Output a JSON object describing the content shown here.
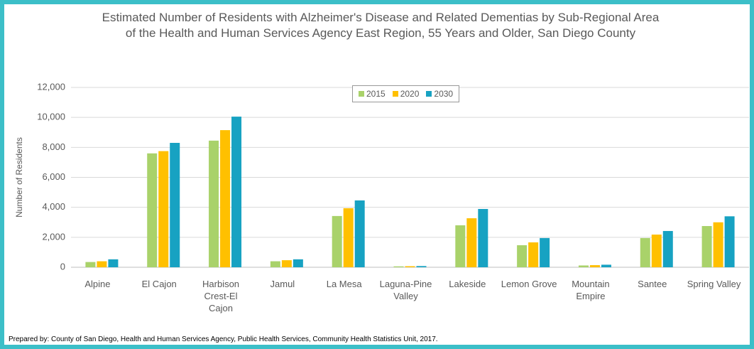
{
  "chart_data": {
    "type": "bar",
    "title": "Estimated Number of Residents with Alzheimer's Disease and Related Dementias by Sub-Regional Area of the Health and Human Services Agency East Region, 55 Years and Older, San Diego County",
    "y_label": "Number of Residents",
    "note": "Prepared by: County of San Diego, Health and Human Services Agency, Public Health Services, Community Health Statistics Unit, 2017.",
    "categories": [
      "Alpine",
      "El Cajon",
      "Harbison Crest-El Cajon",
      "Jamul",
      "La Mesa",
      "Laguna-Pine Valley",
      "Lakeside",
      "Lemon Grove",
      "Mountain Empire",
      "Santee",
      "Spring Valley"
    ],
    "series": [
      {
        "name": "2015",
        "color": "#a9d26a",
        "values": [
          350,
          7600,
          8450,
          400,
          3420,
          60,
          2800,
          1470,
          120,
          1950,
          2750
        ]
      },
      {
        "name": "2020",
        "color": "#ffc000",
        "values": [
          400,
          7750,
          9150,
          470,
          3940,
          70,
          3270,
          1660,
          140,
          2180,
          3000
        ]
      },
      {
        "name": "2030",
        "color": "#17a2c2",
        "values": [
          530,
          8300,
          10050,
          530,
          4460,
          80,
          3890,
          1950,
          170,
          2420,
          3400
        ]
      }
    ],
    "ylim": [
      0,
      12000
    ],
    "yticks": [
      0,
      {
        "value": 2000,
        "label": "2,000"
      },
      {
        "value": 4000,
        "label": "4,000"
      },
      {
        "value": 6000,
        "label": "6,000"
      },
      {
        "value": 8000,
        "label": "8,000"
      },
      {
        "value": 10000,
        "label": "10,000"
      },
      {
        "value": 12000,
        "label": "12,000"
      }
    ],
    "grid": true,
    "legend": "top"
  }
}
